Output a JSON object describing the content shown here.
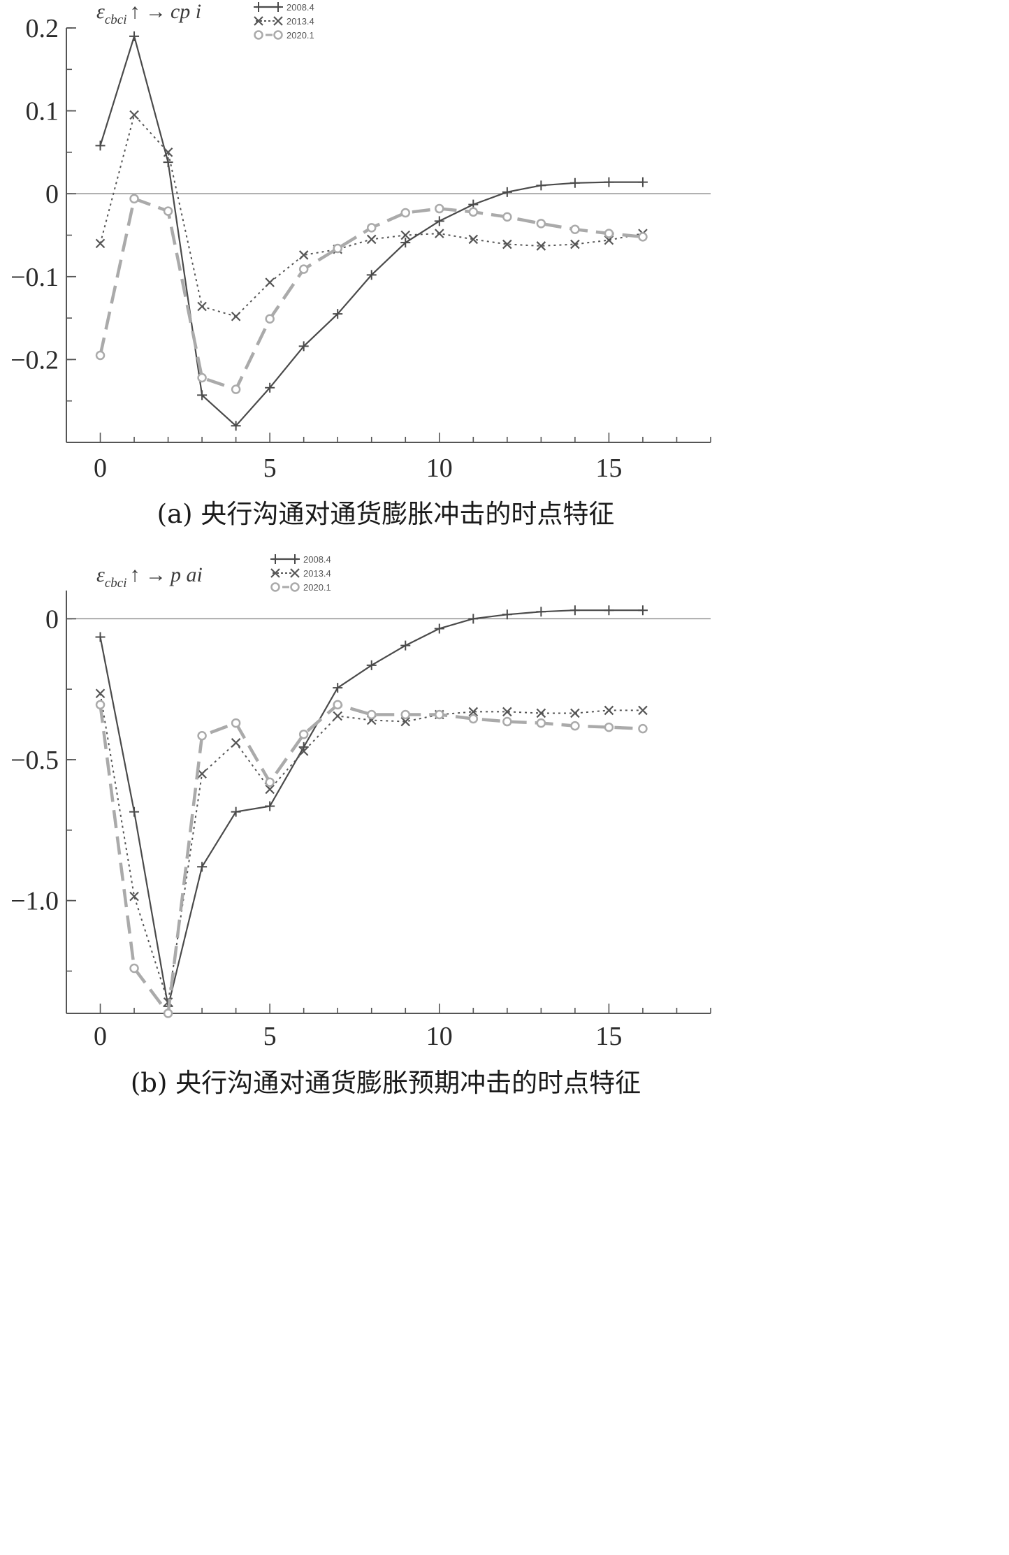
{
  "colors": {
    "2008.4": "#4a4a4a",
    "2013.4": "#555555",
    "2020.1": "#aaaaaa",
    "axis": "#555555",
    "zero": "#999999"
  },
  "chart_data": [
    {
      "type": "line",
      "caption": "(a) 央行沟通对通货膨胀冲击的时点特征",
      "axis_label": {
        "eps": "ε",
        "sub": "cbci",
        "arrow": "↑ →",
        "var": "cp i"
      },
      "x": [
        0,
        1,
        2,
        3,
        4,
        5,
        6,
        7,
        8,
        9,
        10,
        11,
        12,
        13,
        14,
        15,
        16
      ],
      "xlim": [
        -1,
        18
      ],
      "ylim": [
        -0.3,
        0.2
      ],
      "xticks": [
        0,
        5,
        10,
        15
      ],
      "xtick_labels": [
        "0",
        "5",
        "10",
        "15"
      ],
      "yticks": [
        0.2,
        0.1,
        0,
        -0.1,
        -0.2
      ],
      "ytick_labels": [
        "0.2",
        "0.1",
        "0",
        "−0.1",
        "−0.2"
      ],
      "grid": false,
      "legend": "top-left",
      "series": [
        {
          "name": "2008.4",
          "values": [
            0.058,
            0.19,
            0.038,
            -0.243,
            -0.28,
            -0.234,
            -0.184,
            -0.145,
            -0.098,
            -0.059,
            -0.033,
            -0.013,
            0.002,
            0.01,
            0.013,
            0.014,
            0.014
          ]
        },
        {
          "name": "2013.4",
          "values": [
            -0.06,
            0.095,
            0.05,
            -0.136,
            -0.148,
            -0.107,
            -0.074,
            -0.067,
            -0.055,
            -0.05,
            -0.048,
            -0.055,
            -0.061,
            -0.063,
            -0.061,
            -0.056,
            -0.048
          ]
        },
        {
          "name": "2020.1",
          "values": [
            -0.195,
            -0.006,
            -0.021,
            -0.222,
            -0.236,
            -0.151,
            -0.091,
            -0.066,
            -0.041,
            -0.023,
            -0.018,
            -0.022,
            -0.028,
            -0.036,
            -0.043,
            -0.048,
            -0.052
          ]
        }
      ]
    },
    {
      "type": "line",
      "caption": "(b) 央行沟通对通货膨胀预期冲击的时点特征",
      "axis_label": {
        "eps": "ε",
        "sub": "cbci",
        "arrow": "↑ →",
        "var": "p ai"
      },
      "x": [
        0,
        1,
        2,
        3,
        4,
        5,
        6,
        7,
        8,
        9,
        10,
        11,
        12,
        13,
        14,
        15,
        16
      ],
      "xlim": [
        -1,
        18
      ],
      "ylim": [
        -1.4,
        0.1
      ],
      "xticks": [
        0,
        5,
        10,
        15
      ],
      "xtick_labels": [
        "0",
        "5",
        "10",
        "15"
      ],
      "yticks": [
        0,
        -0.5,
        -1.0
      ],
      "ytick_labels": [
        "0",
        "−0.5",
        "−1.0"
      ],
      "grid": false,
      "legend": "top-left",
      "series": [
        {
          "name": "2008.4",
          "values": [
            -0.065,
            -0.685,
            -1.375,
            -0.88,
            -0.685,
            -0.665,
            -0.455,
            -0.245,
            -0.165,
            -0.095,
            -0.035,
            0.0,
            0.015,
            0.025,
            0.03,
            0.03,
            0.03
          ]
        },
        {
          "name": "2013.4",
          "values": [
            -0.265,
            -0.985,
            -1.36,
            -0.55,
            -0.44,
            -0.605,
            -0.47,
            -0.345,
            -0.36,
            -0.365,
            -0.34,
            -0.33,
            -0.33,
            -0.335,
            -0.335,
            -0.325,
            -0.325
          ]
        },
        {
          "name": "2020.1",
          "values": [
            -0.305,
            -1.24,
            -1.4,
            -0.415,
            -0.37,
            -0.58,
            -0.41,
            -0.305,
            -0.34,
            -0.34,
            -0.34,
            -0.355,
            -0.365,
            -0.37,
            -0.38,
            -0.385,
            -0.39
          ]
        }
      ]
    }
  ]
}
